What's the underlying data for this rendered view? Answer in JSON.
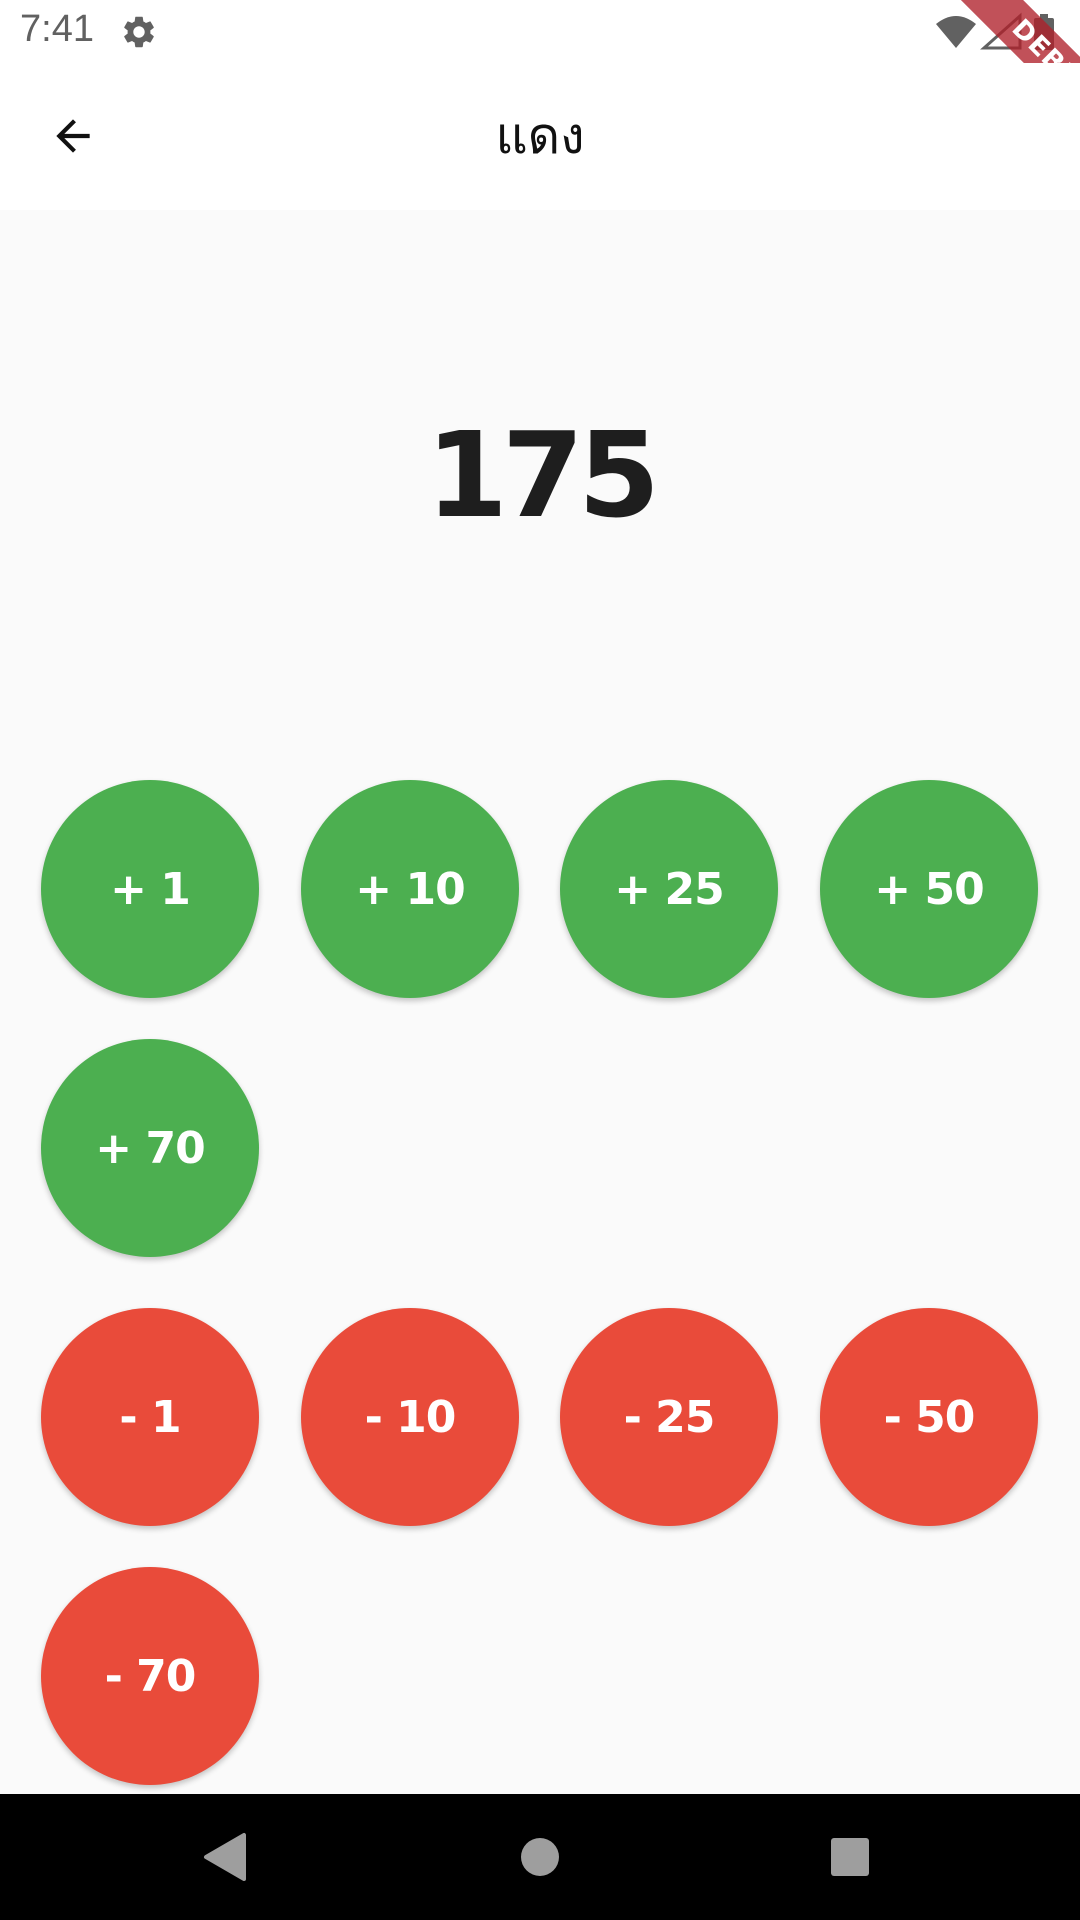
{
  "status_bar": {
    "time": "7:41",
    "settings_icon": "gear-icon",
    "wifi_icon": "wifi-icon",
    "signal_icon": "signal-icon",
    "battery_icon": "battery-icon"
  },
  "debug_banner": "DEBUG",
  "app_bar": {
    "back_icon": "arrow-back-icon",
    "title": "แดง"
  },
  "counter": {
    "value": "175"
  },
  "add_buttons": [
    {
      "label": "+ 1"
    },
    {
      "label": "+ 10"
    },
    {
      "label": "+ 25"
    },
    {
      "label": "+ 50"
    },
    {
      "label": "+ 70"
    }
  ],
  "subtract_buttons": [
    {
      "label": "- 1"
    },
    {
      "label": "- 10"
    },
    {
      "label": "- 25"
    },
    {
      "label": "- 50"
    },
    {
      "label": "- 70"
    }
  ],
  "colors": {
    "add": "#4caf50",
    "subtract": "#e94b3a",
    "background": "#fafafa"
  },
  "nav_bar": {
    "back_icon": "nav-back-icon",
    "home_icon": "nav-home-icon",
    "recents_icon": "nav-recents-icon"
  }
}
